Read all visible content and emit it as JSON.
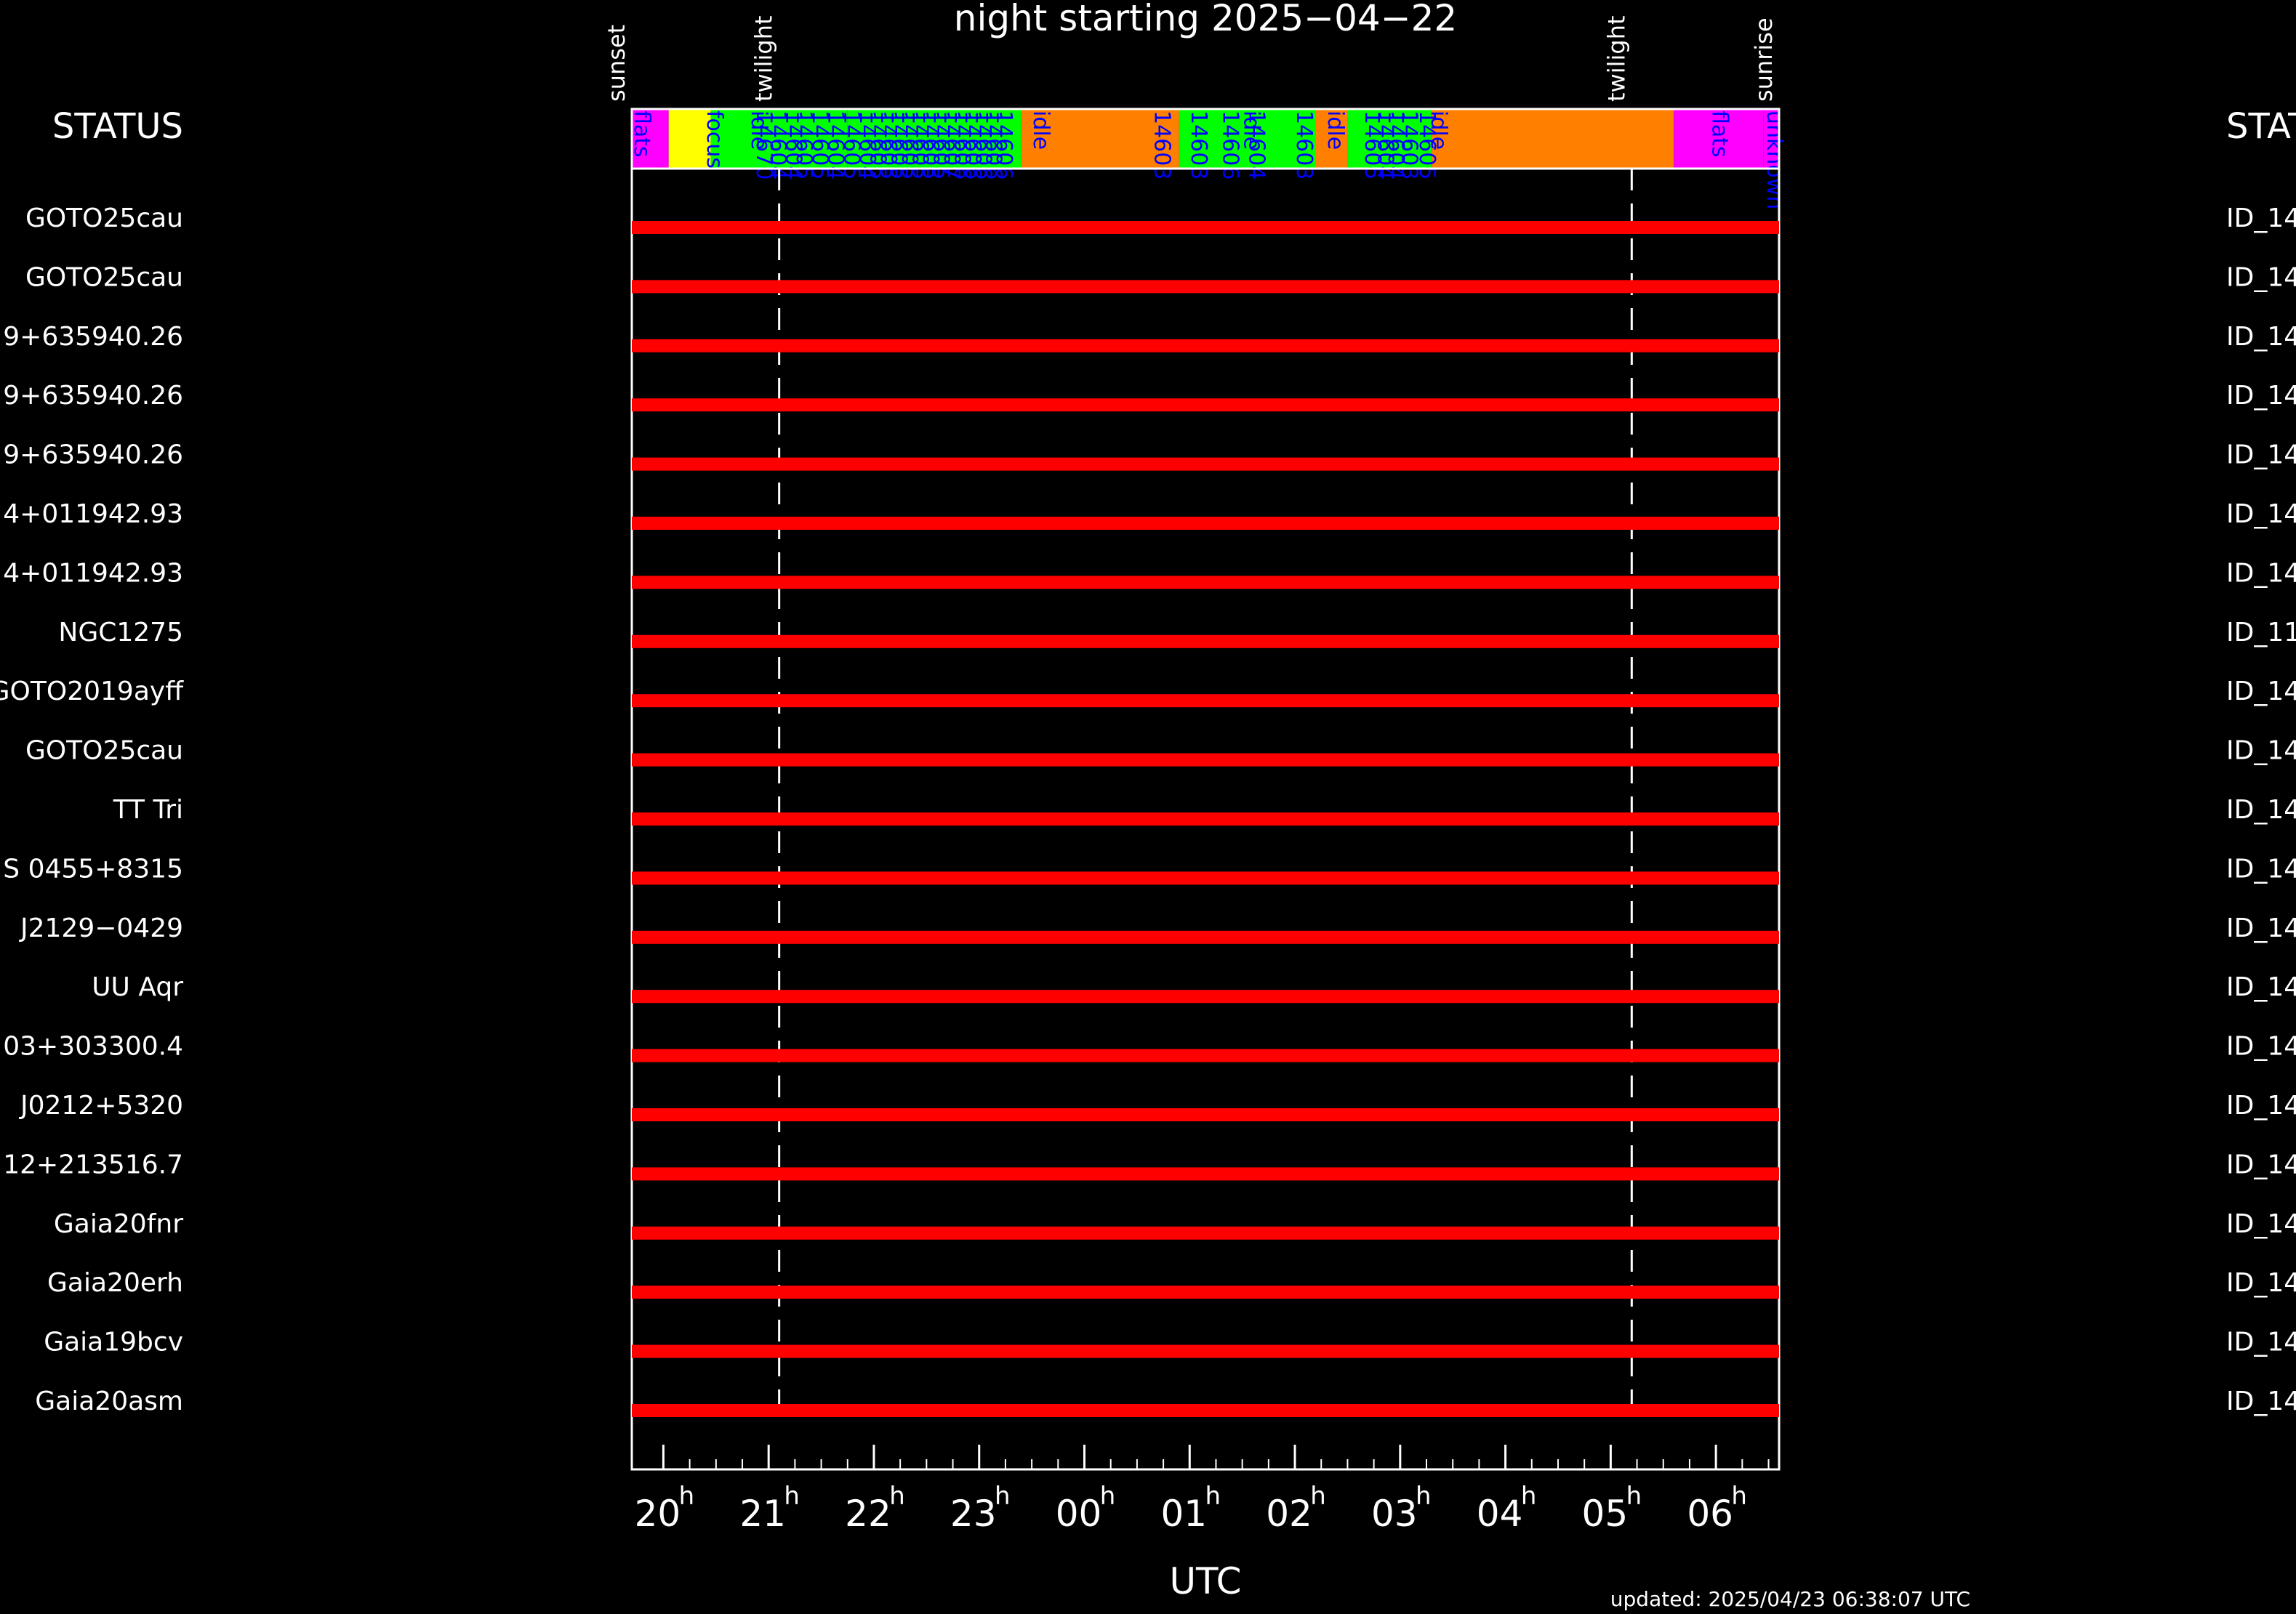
{
  "title": "night starting 2025−04−22",
  "status_label": "STATUS",
  "status_label_right": "STAT",
  "x_axis_label": "UTC",
  "updated_text": "updated: 2025/04/23 06:38:07 UTC",
  "colors": {
    "background": "#000000",
    "foreground": "#ffffff",
    "row_bar": "#ff0000",
    "flats": "#ff00ff",
    "focus": "#ffff00",
    "observing": "#00ff00",
    "idle": "#ff8000",
    "unknown": "#ff00ff",
    "event_label": "#0000ff"
  },
  "chart_data": {
    "type": "timeline",
    "x_unit": "hours UTC (continuous from 2025-04-22 20:00)",
    "xlim": [
      19.7,
      30.6
    ],
    "x_ticks": [
      {
        "value": 20,
        "hour": "20"
      },
      {
        "value": 21,
        "hour": "21"
      },
      {
        "value": 22,
        "hour": "22"
      },
      {
        "value": 23,
        "hour": "23"
      },
      {
        "value": 24,
        "hour": "00"
      },
      {
        "value": 25,
        "hour": "01"
      },
      {
        "value": 26,
        "hour": "02"
      },
      {
        "value": 27,
        "hour": "03"
      },
      {
        "value": 28,
        "hour": "04"
      },
      {
        "value": 29,
        "hour": "05"
      },
      {
        "value": 30,
        "hour": "06"
      }
    ],
    "sun_events": [
      {
        "label": "sunset",
        "x": 19.7,
        "dashed": false
      },
      {
        "label": "twilight",
        "x": 21.1,
        "dashed": true
      },
      {
        "label": "twilight",
        "x": 29.2,
        "dashed": true
      },
      {
        "label": "sunrise",
        "x": 30.6,
        "dashed": false
      }
    ],
    "status_segments": [
      {
        "state": "flats",
        "start": 19.7,
        "end": 20.05
      },
      {
        "state": "focus",
        "start": 20.05,
        "end": 20.45
      },
      {
        "state": "observing",
        "start": 20.45,
        "end": 21.75
      },
      {
        "state": "observing",
        "start": 21.75,
        "end": 23.4
      },
      {
        "state": "idle",
        "start": 23.4,
        "end": 24.9
      },
      {
        "state": "observing",
        "start": 24.9,
        "end": 26.2
      },
      {
        "state": "idle",
        "start": 26.2,
        "end": 26.5
      },
      {
        "state": "observing",
        "start": 26.5,
        "end": 27.3
      },
      {
        "state": "idle",
        "start": 27.3,
        "end": 29.6
      },
      {
        "state": "flats",
        "start": 29.6,
        "end": 30.45
      },
      {
        "state": "unknown",
        "start": 30.45,
        "end": 30.6
      }
    ],
    "status_labels": [
      {
        "text": "flats",
        "x": 19.66
      },
      {
        "text": "focus",
        "x": 20.35
      },
      {
        "text": "idle",
        "x": 20.77
      },
      {
        "text": "14670",
        "x": 20.82
      },
      {
        "text": "14604",
        "x": 20.95
      },
      {
        "text": "14604",
        "x": 21.1
      },
      {
        "text": "14605",
        "x": 21.2
      },
      {
        "text": "14605",
        "x": 21.35
      },
      {
        "text": "14604",
        "x": 21.5
      },
      {
        "text": "14605",
        "x": 21.65
      },
      {
        "text": "14604",
        "x": 21.8
      },
      {
        "text": "14605",
        "x": 21.9
      },
      {
        "text": "14605",
        "x": 22.0
      },
      {
        "text": "14605",
        "x": 22.1
      },
      {
        "text": "14605",
        "x": 22.2
      },
      {
        "text": "14605",
        "x": 22.3
      },
      {
        "text": "14605",
        "x": 22.4
      },
      {
        "text": "14605",
        "x": 22.5
      },
      {
        "text": "14607",
        "x": 22.6
      },
      {
        "text": "14606",
        "x": 22.7
      },
      {
        "text": "14606",
        "x": 22.8
      },
      {
        "text": "14606",
        "x": 22.9
      },
      {
        "text": "14606",
        "x": 23.0
      },
      {
        "text": "14606",
        "x": 23.1
      },
      {
        "text": "idle",
        "x": 23.45
      },
      {
        "text": "14603",
        "x": 24.6
      },
      {
        "text": "14603",
        "x": 24.95
      },
      {
        "text": "14606",
        "x": 25.25
      },
      {
        "text": "idle",
        "x": 25.45
      },
      {
        "text": "14604",
        "x": 25.5
      },
      {
        "text": "14603",
        "x": 25.95
      },
      {
        "text": "idle",
        "x": 26.25
      },
      {
        "text": "14605",
        "x": 26.6
      },
      {
        "text": "14604",
        "x": 26.72
      },
      {
        "text": "14604",
        "x": 26.82
      },
      {
        "text": "14603",
        "x": 26.95
      },
      {
        "text": "14605",
        "x": 27.12
      },
      {
        "text": "idle",
        "x": 27.23
      },
      {
        "text": "flats",
        "x": 29.9
      },
      {
        "text": "unknown",
        "x": 30.42
      }
    ],
    "rows": [
      {
        "name": "GOTO25cau",
        "id": "ID_14"
      },
      {
        "name": "GOTO25cau",
        "id": "ID_14"
      },
      {
        "name": "9+635940.26",
        "id": "ID_14"
      },
      {
        "name": "9+635940.26",
        "id": "ID_14"
      },
      {
        "name": "9+635940.26",
        "id": "ID_14"
      },
      {
        "name": "4+011942.93",
        "id": "ID_14"
      },
      {
        "name": "4+011942.93",
        "id": "ID_14"
      },
      {
        "name": "NGC1275",
        "id": "ID_11"
      },
      {
        "name": "GOTO2019ayff",
        "id": "ID_14"
      },
      {
        "name": "GOTO25cau",
        "id": "ID_14"
      },
      {
        "name": "TT Tri",
        "id": "ID_14"
      },
      {
        "name": "S 0455+8315",
        "id": "ID_14"
      },
      {
        "name": "J2129−0429",
        "id": "ID_14"
      },
      {
        "name": "UU Aqr",
        "id": "ID_14"
      },
      {
        "name": "03+303300.4",
        "id": "ID_14"
      },
      {
        "name": "J0212+5320",
        "id": "ID_14"
      },
      {
        "name": "12+213516.7",
        "id": "ID_14"
      },
      {
        "name": "Gaia20fnr",
        "id": "ID_14"
      },
      {
        "name": "Gaia20erh",
        "id": "ID_14"
      },
      {
        "name": "Gaia19bcv",
        "id": "ID_14"
      },
      {
        "name": "Gaia20asm",
        "id": "ID_14"
      }
    ],
    "row_bars": {
      "start": 19.7,
      "end": 30.6
    }
  }
}
